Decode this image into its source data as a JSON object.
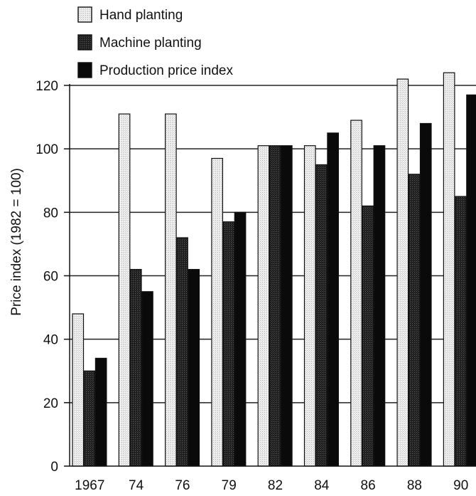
{
  "chart_data": {
    "type": "bar",
    "title": "",
    "xlabel": "",
    "ylabel": "Price index (1982 = 100)",
    "categories": [
      "1967",
      "74",
      "76",
      "79",
      "82",
      "84",
      "86",
      "88",
      "90"
    ],
    "series": [
      {
        "name": "Hand planting",
        "values": [
          48,
          111,
          111,
          97,
          101,
          101,
          109,
          122,
          124
        ],
        "color": "#e8e8e8"
      },
      {
        "name": "Machine planting",
        "values": [
          30,
          62,
          72,
          77,
          101,
          95,
          82,
          92,
          85
        ],
        "color": "#262626"
      },
      {
        "name": "Production price index",
        "values": [
          34,
          55,
          62,
          80,
          101,
          105,
          101,
          108,
          117
        ],
        "color": "#0a0a0a"
      }
    ],
    "ylim": [
      0,
      120
    ],
    "yticks": [
      0,
      20,
      40,
      60,
      80,
      100,
      120
    ],
    "grid": true,
    "legend_position": "top-left"
  }
}
